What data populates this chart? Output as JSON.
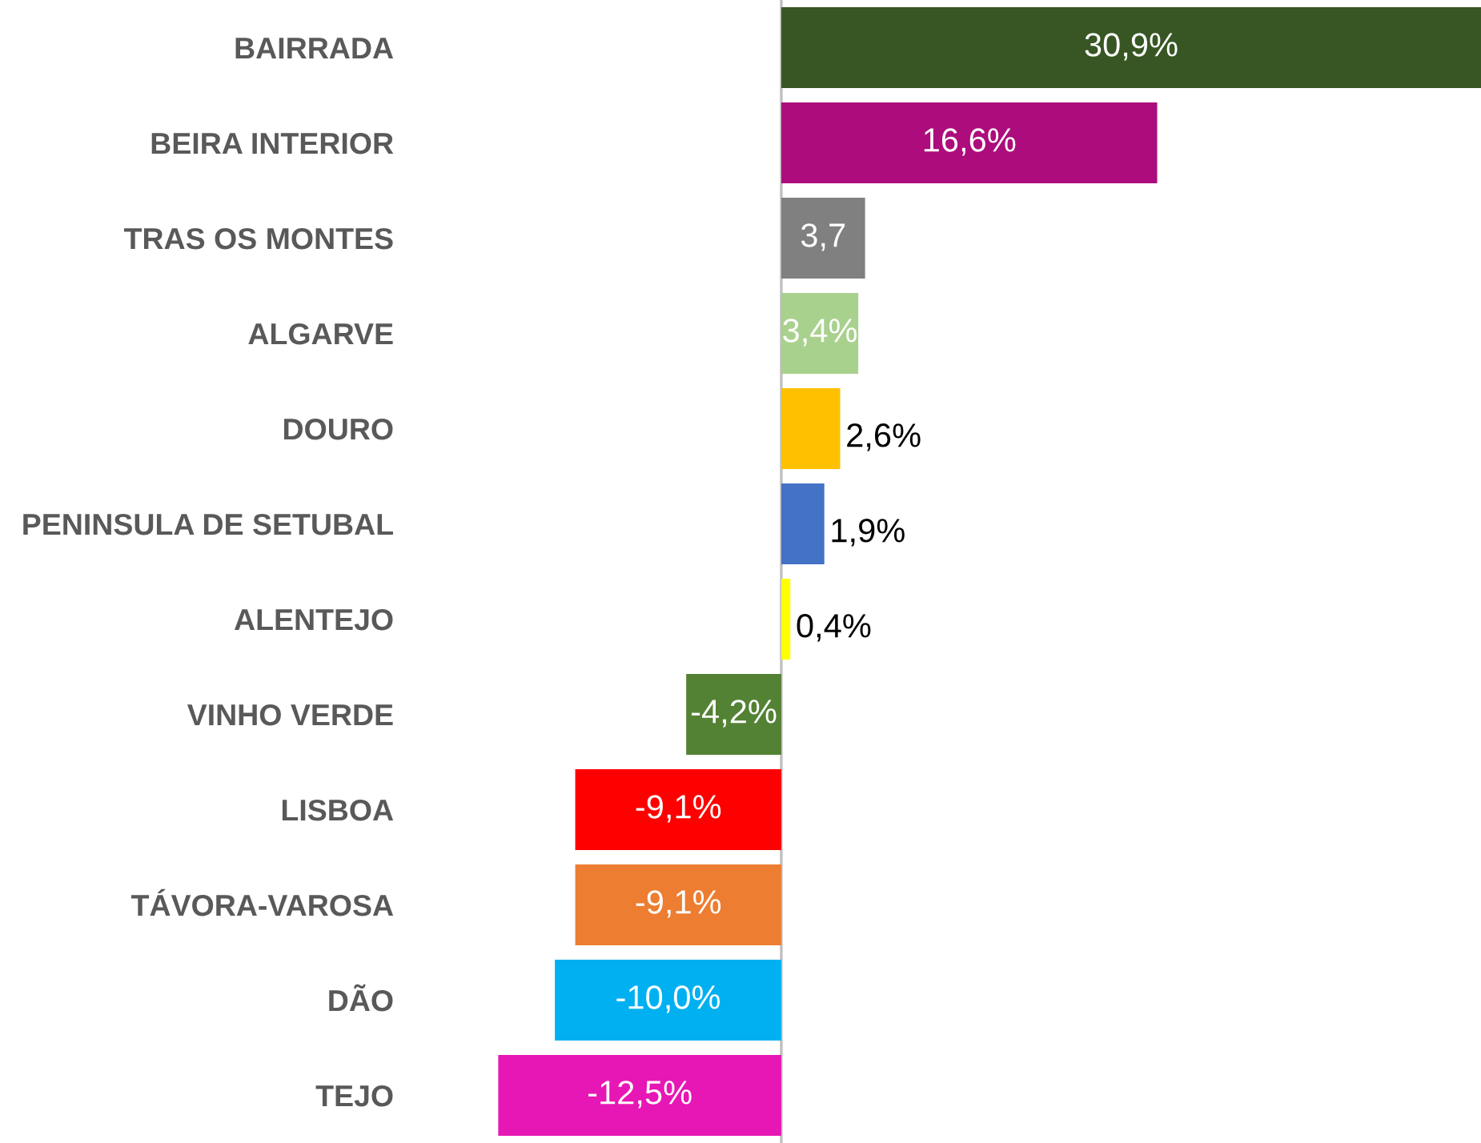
{
  "chart_data": {
    "type": "bar",
    "orientation": "horizontal",
    "categories": [
      "BAIRRADA",
      "BEIRA INTERIOR",
      "TRAS OS MONTES",
      "ALGARVE",
      "DOURO",
      "PENINSULA DE SETUBAL",
      "ALENTEJO",
      "VINHO VERDE",
      "LISBOA",
      "TÁVORA-VAROSA",
      "DÃO",
      "TEJO"
    ],
    "values": [
      30.9,
      16.6,
      3.7,
      3.4,
      2.6,
      1.9,
      0.4,
      -4.2,
      -9.1,
      -9.1,
      -10.0,
      -12.5
    ],
    "value_labels": [
      "30,9%",
      "16,6%",
      "3,7",
      "3,4%",
      "2,6%",
      "1,9%",
      "0,4%",
      "-4,2%",
      "-9,1%",
      "-9,1%",
      "-10,0%",
      "-12,5%"
    ],
    "colors": [
      "#375623",
      "#ac0c7c",
      "#808080",
      "#a9d18e",
      "#ffc000",
      "#4472c4",
      "#ffff00",
      "#548235",
      "#ff0000",
      "#ed7d31",
      "#00b0f0",
      "#e617b4"
    ],
    "grid": false,
    "legend": false
  }
}
